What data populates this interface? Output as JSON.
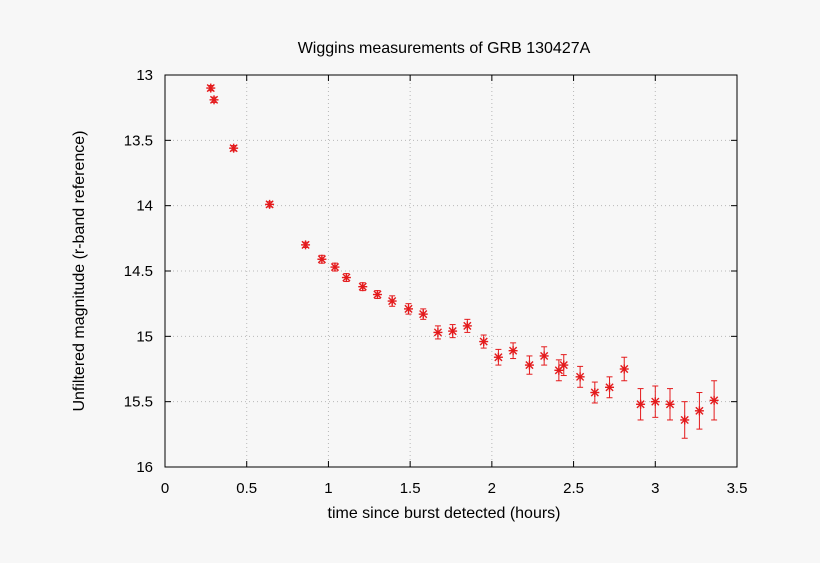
{
  "chart_data": {
    "type": "scatter",
    "title": "Wiggins measurements of GRB 130427A",
    "xlabel": "time since burst detected (hours)",
    "ylabel": "Unfiltered magnitude (r-band reference)",
    "xlim": [
      0,
      3.5
    ],
    "ylim": [
      13,
      16
    ],
    "y_inverted": true,
    "grid": true,
    "marker": "asterisk",
    "color": "#e41a1c",
    "x_ticks": [
      "0",
      "0.5",
      "1",
      "1.5",
      "2",
      "2.5",
      "3",
      "3.5"
    ],
    "y_ticks": [
      "13",
      "13.5",
      "14",
      "14.5",
      "15",
      "15.5",
      "16"
    ],
    "points": [
      {
        "x": 0.28,
        "y": 13.1,
        "err": 0.02
      },
      {
        "x": 0.3,
        "y": 13.19,
        "err": 0.02
      },
      {
        "x": 0.42,
        "y": 13.56,
        "err": 0.02
      },
      {
        "x": 0.64,
        "y": 13.99,
        "err": 0.02
      },
      {
        "x": 0.86,
        "y": 14.3,
        "err": 0.02
      },
      {
        "x": 0.96,
        "y": 14.41,
        "err": 0.03
      },
      {
        "x": 1.04,
        "y": 14.47,
        "err": 0.03
      },
      {
        "x": 1.11,
        "y": 14.55,
        "err": 0.03
      },
      {
        "x": 1.21,
        "y": 14.62,
        "err": 0.03
      },
      {
        "x": 1.3,
        "y": 14.68,
        "err": 0.03
      },
      {
        "x": 1.39,
        "y": 14.73,
        "err": 0.04
      },
      {
        "x": 1.49,
        "y": 14.79,
        "err": 0.04
      },
      {
        "x": 1.58,
        "y": 14.83,
        "err": 0.04
      },
      {
        "x": 1.67,
        "y": 14.97,
        "err": 0.05
      },
      {
        "x": 1.76,
        "y": 14.96,
        "err": 0.05
      },
      {
        "x": 1.85,
        "y": 14.92,
        "err": 0.05
      },
      {
        "x": 1.95,
        "y": 15.04,
        "err": 0.05
      },
      {
        "x": 2.04,
        "y": 15.16,
        "err": 0.06
      },
      {
        "x": 2.13,
        "y": 15.11,
        "err": 0.06
      },
      {
        "x": 2.23,
        "y": 15.22,
        "err": 0.07
      },
      {
        "x": 2.32,
        "y": 15.15,
        "err": 0.07
      },
      {
        "x": 2.41,
        "y": 15.26,
        "err": 0.08
      },
      {
        "x": 2.44,
        "y": 15.22,
        "err": 0.08
      },
      {
        "x": 2.54,
        "y": 15.31,
        "err": 0.08
      },
      {
        "x": 2.63,
        "y": 15.43,
        "err": 0.08
      },
      {
        "x": 2.72,
        "y": 15.39,
        "err": 0.08
      },
      {
        "x": 2.81,
        "y": 15.25,
        "err": 0.09
      },
      {
        "x": 2.91,
        "y": 15.52,
        "err": 0.12
      },
      {
        "x": 3.0,
        "y": 15.5,
        "err": 0.12
      },
      {
        "x": 3.09,
        "y": 15.52,
        "err": 0.12
      },
      {
        "x": 3.18,
        "y": 15.64,
        "err": 0.14
      },
      {
        "x": 3.27,
        "y": 15.57,
        "err": 0.14
      },
      {
        "x": 3.36,
        "y": 15.49,
        "err": 0.15
      }
    ]
  }
}
